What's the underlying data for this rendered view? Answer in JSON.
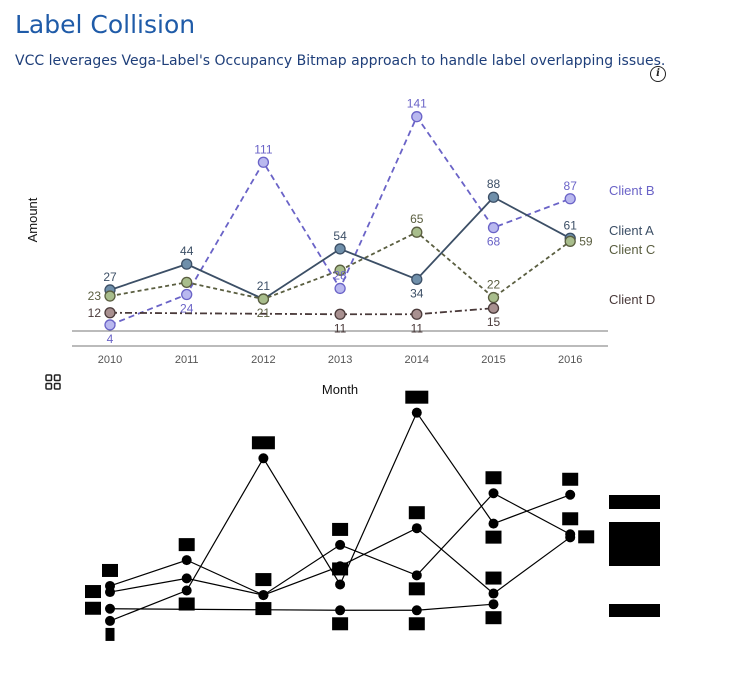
{
  "header": {
    "title": "Label Collision",
    "subtitle": "VCC leverages Vega-Label's Occupancy Bitmap approach to handle label overlapping issues.",
    "info_icon": "info-icon",
    "grid_icon": "grid-icon"
  },
  "chart_data": {
    "type": "line",
    "title": "Label Collision",
    "xlabel": "Month",
    "ylabel": "Amount",
    "categories": [
      "2010",
      "2011",
      "2012",
      "2013",
      "2014",
      "2015",
      "2016"
    ],
    "ylim": [
      0,
      150
    ],
    "series": [
      {
        "name": "Client B",
        "values": [
          4,
          24,
          111,
          28,
          141,
          68,
          87
        ],
        "color": "#6a63c7",
        "marker": "#b9b8ef",
        "dash": "6,4"
      },
      {
        "name": "Client A",
        "values": [
          27,
          44,
          21,
          54,
          34,
          88,
          61
        ],
        "color": "#3c4f66",
        "marker": "#6f8faa",
        "dash": ""
      },
      {
        "name": "Client C",
        "values": [
          23,
          32,
          21,
          40,
          65,
          22,
          59
        ],
        "color": "#5a5e40",
        "marker": "#a8bd8c",
        "dash": "4,3"
      },
      {
        "name": "Client D",
        "values": [
          12,
          null,
          null,
          11,
          11,
          15,
          null
        ],
        "color": "#4a3a3a",
        "marker": "#a89090",
        "dash": "7,3,2,3"
      }
    ],
    "labels": {
      "Client B": [
        {
          "i": 0,
          "text": "4",
          "pos": "below"
        },
        {
          "i": 1,
          "text": "24",
          "pos": "below"
        },
        {
          "i": 2,
          "text": "111",
          "pos": "above"
        },
        {
          "i": 3,
          "text": "28",
          "pos": "above"
        },
        {
          "i": 4,
          "text": "141",
          "pos": "above"
        },
        {
          "i": 5,
          "text": "68",
          "pos": "below"
        },
        {
          "i": 6,
          "text": "87",
          "pos": "above"
        }
      ],
      "Client A": [
        {
          "i": 0,
          "text": "27",
          "pos": "above"
        },
        {
          "i": 1,
          "text": "44",
          "pos": "above"
        },
        {
          "i": 2,
          "text": "21",
          "pos": "above"
        },
        {
          "i": 3,
          "text": "54",
          "pos": "above"
        },
        {
          "i": 4,
          "text": "34",
          "pos": "below"
        },
        {
          "i": 5,
          "text": "88",
          "pos": "above"
        },
        {
          "i": 6,
          "text": "61",
          "pos": "above"
        }
      ],
      "Client C": [
        {
          "i": 0,
          "text": "23",
          "pos": "left"
        },
        {
          "i": 2,
          "text": "21",
          "pos": "below"
        },
        {
          "i": 4,
          "text": "65",
          "pos": "above"
        },
        {
          "i": 5,
          "text": "22",
          "pos": "above"
        },
        {
          "i": 6,
          "text": "59",
          "pos": "right"
        }
      ],
      "Client D": [
        {
          "i": 0,
          "text": "12",
          "pos": "left"
        },
        {
          "i": 3,
          "text": "11",
          "pos": "below"
        },
        {
          "i": 4,
          "text": "11",
          "pos": "below"
        },
        {
          "i": 5,
          "text": "15",
          "pos": "below"
        }
      ]
    },
    "legend_placement": "right, end of lines"
  }
}
